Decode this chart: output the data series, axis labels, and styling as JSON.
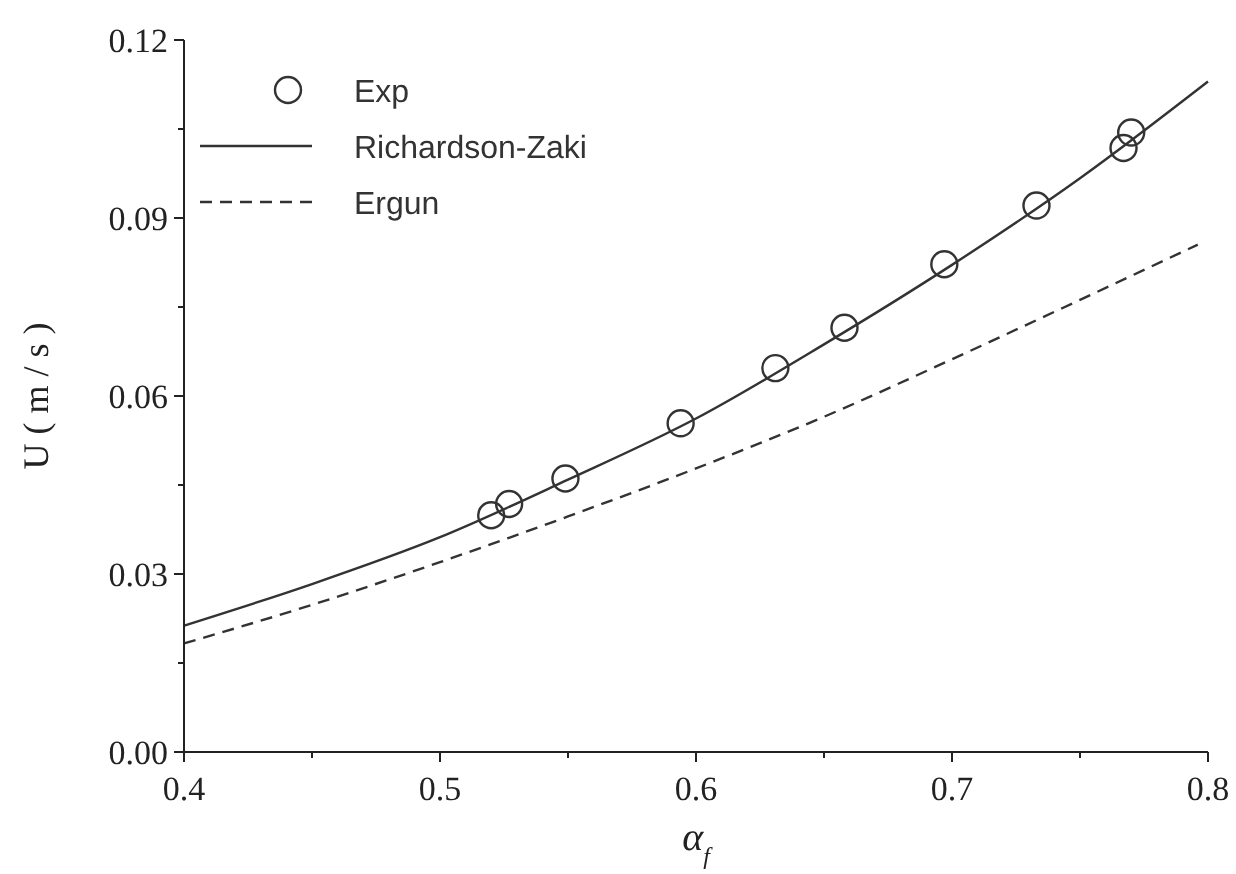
{
  "chart_data": {
    "type": "line",
    "xlabel": "α$_{f}$",
    "ylabel": "U ( m / s )",
    "xlim": [
      0.4,
      0.8
    ],
    "ylim": [
      0,
      0.12
    ],
    "xticks": [
      0.4,
      {
        "value": 0.45,
        "label": null
      },
      0.5,
      {
        "value": 0.55,
        "label": null
      },
      0.6,
      {
        "value": 0.65,
        "label": null
      },
      0.7,
      {
        "value": 0.75,
        "label": null
      },
      0.8
    ],
    "yticks": [
      "0.00",
      {
        "value": 0.015,
        "label": null
      },
      0.03,
      {
        "value": 0.045,
        "label": null
      },
      0.06,
      {
        "value": 0.075,
        "label": null
      },
      0.09,
      {
        "value": 0.105,
        "label": null
      },
      0.12
    ],
    "legend": "top left",
    "grid": false,
    "series": [
      {
        "name": "Exp",
        "type": "scatter",
        "marker": "circle",
        "color": "#333333",
        "x": [
          0.52,
          0.527,
          0.549,
          0.594,
          0.631,
          0.658,
          0.697,
          0.733,
          0.767,
          0.77
        ],
        "values": [
          0.0399,
          0.0418,
          0.0461,
          0.0554,
          0.0647,
          0.0715,
          0.0822,
          0.0921,
          0.1018,
          0.1044
        ]
      },
      {
        "name": "Richardson-Zaki",
        "line_style": "solid",
        "color": "#333333",
        "x": [
          0.4,
          0.45,
          0.5,
          0.55,
          0.6,
          0.65,
          0.7,
          0.75,
          0.8
        ],
        "values": [
          0.0213,
          0.0283,
          0.0362,
          0.0459,
          0.0562,
          0.0687,
          0.0821,
          0.0967,
          0.113
        ]
      },
      {
        "name": "Ergun",
        "line_style": "dashed",
        "color": "#333333",
        "x": [
          0.4,
          0.45,
          0.5,
          0.55,
          0.6,
          0.65,
          0.7,
          0.75,
          0.796
        ],
        "values": [
          0.0183,
          0.0248,
          0.032,
          0.0397,
          0.0478,
          0.0565,
          0.0662,
          0.0762,
          0.0855
        ]
      }
    ]
  }
}
